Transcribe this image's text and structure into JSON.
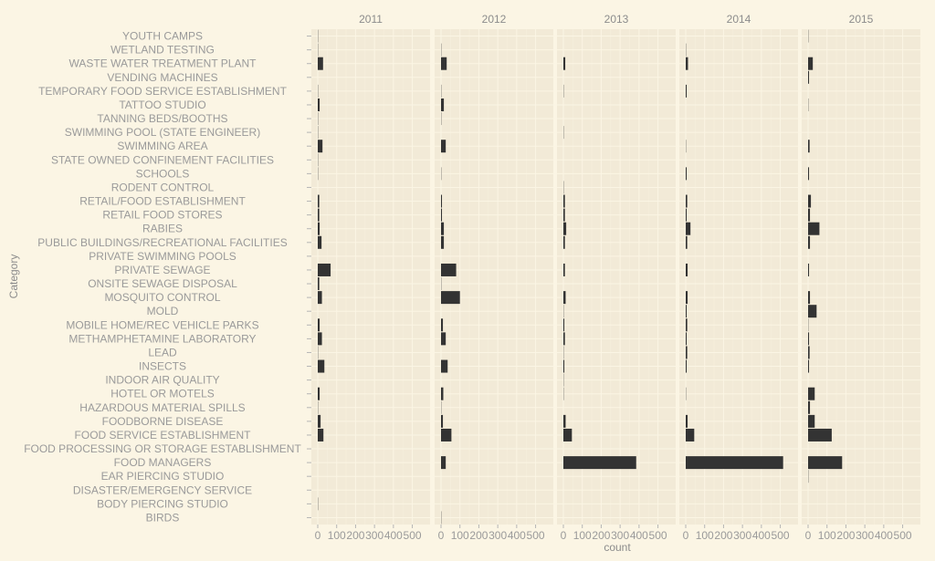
{
  "chart_data": {
    "type": "bar",
    "orientation": "horizontal",
    "facet_by": "year",
    "xlabel": "count",
    "ylabel": "Category",
    "xlim": [
      0,
      560
    ],
    "x_ticks": [
      0,
      100,
      200,
      300,
      400,
      500
    ],
    "grid": true,
    "facets": [
      "2011",
      "2012",
      "2013",
      "2014",
      "2015"
    ],
    "categories": [
      "YOUTH CAMPS",
      "WETLAND TESTING",
      "WASTE WATER TREATMENT PLANT",
      "VENDING MACHINES",
      "TEMPORARY FOOD SERVICE ESTABLISHMENT",
      "TATTOO STUDIO",
      "TANNING BEDS/BOOTHS",
      "SWIMMING POOL (STATE ENGINEER)",
      "SWIMMING AREA",
      "STATE OWNED CONFINEMENT FACILITIES",
      "SCHOOLS",
      "RODENT CONTROL",
      "RETAIL/FOOD ESTABLISHMENT",
      "RETAIL FOOD STORES",
      "RABIES",
      "PUBLIC BUILDINGS/RECREATIONAL FACILITIES",
      "PRIVATE SWIMMING POOLS",
      "PRIVATE SEWAGE",
      "ONSITE SEWAGE DISPOSAL",
      "MOSQUITO CONTROL",
      "MOLD",
      "MOBILE HOME/REC VEHICLE PARKS",
      "METHAMPHETAMINE LABORATORY",
      "LEAD",
      "INSECTS",
      "INDOOR AIR QUALITY",
      "HOTEL OR MOTELS",
      "HAZARDOUS MATERIAL SPILLS",
      "FOODBORNE DISEASE",
      "FOOD SERVICE ESTABLISHMENT",
      "FOOD PROCESSING OR STORAGE ESTABLISHMENT",
      "FOOD MANAGERS",
      "EAR PIERCING STUDIO",
      "DISASTER/EMERGENCY SERVICE",
      "BODY PIERCING STUDIO",
      "BIRDS"
    ],
    "series": [
      {
        "name": "2011",
        "values": [
          2,
          1,
          28,
          0,
          2,
          10,
          2,
          2,
          25,
          2,
          2,
          0,
          8,
          8,
          10,
          20,
          0,
          68,
          8,
          22,
          0,
          10,
          22,
          2,
          35,
          0,
          10,
          2,
          15,
          30,
          0,
          0,
          0,
          0,
          2,
          0
        ]
      },
      {
        "name": "2012",
        "values": [
          0,
          2,
          30,
          0,
          2,
          15,
          2,
          0,
          25,
          0,
          2,
          0,
          5,
          5,
          15,
          15,
          0,
          80,
          3,
          100,
          0,
          10,
          25,
          0,
          35,
          0,
          12,
          3,
          10,
          55,
          0,
          25,
          0,
          0,
          0,
          2
        ]
      },
      {
        "name": "2013",
        "values": [
          0,
          0,
          10,
          0,
          3,
          0,
          0,
          2,
          0,
          0,
          0,
          2,
          8,
          8,
          15,
          8,
          0,
          8,
          0,
          12,
          3,
          5,
          8,
          3,
          5,
          2,
          2,
          0,
          12,
          45,
          0,
          385,
          0,
          0,
          0,
          0
        ]
      },
      {
        "name": "2014",
        "values": [
          0,
          2,
          12,
          0,
          5,
          0,
          0,
          0,
          3,
          0,
          5,
          0,
          8,
          5,
          25,
          8,
          0,
          10,
          0,
          10,
          5,
          8,
          5,
          8,
          5,
          0,
          3,
          0,
          10,
          45,
          0,
          515,
          0,
          0,
          0,
          0
        ]
      },
      {
        "name": "2015",
        "values": [
          2,
          0,
          25,
          5,
          0,
          2,
          0,
          0,
          8,
          0,
          5,
          0,
          15,
          10,
          60,
          10,
          0,
          5,
          0,
          10,
          45,
          3,
          5,
          8,
          5,
          0,
          35,
          10,
          35,
          125,
          0,
          180,
          2,
          0,
          0,
          0
        ]
      }
    ]
  }
}
